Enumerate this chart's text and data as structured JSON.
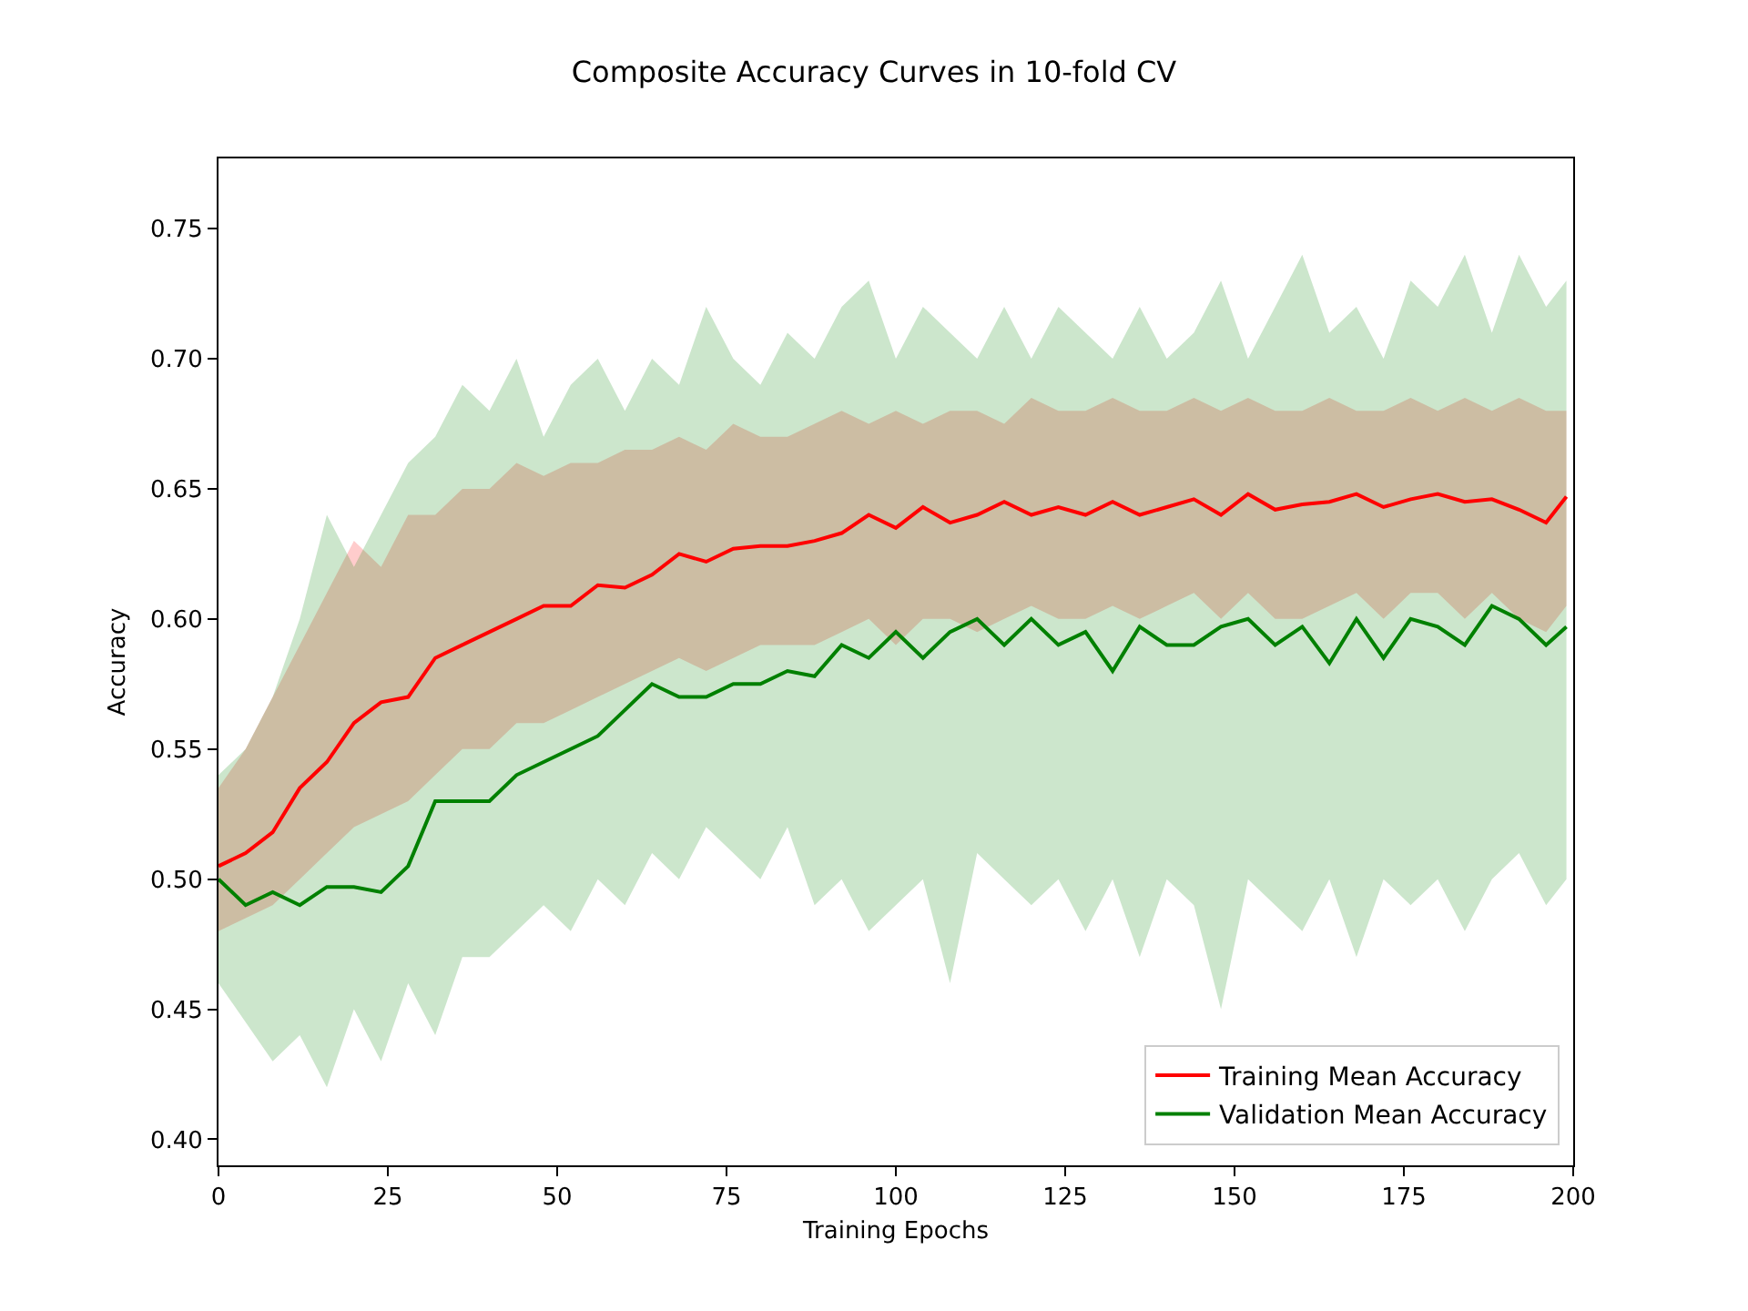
{
  "chart_data": {
    "type": "line",
    "title": "Composite Accuracy Curves in 10-fold CV",
    "xlabel": "Training Epochs",
    "ylabel": "Accuracy",
    "x": [
      0,
      4,
      8,
      12,
      16,
      20,
      24,
      28,
      32,
      36,
      40,
      44,
      48,
      52,
      56,
      60,
      64,
      68,
      72,
      76,
      80,
      84,
      88,
      92,
      96,
      100,
      104,
      108,
      112,
      116,
      120,
      124,
      128,
      132,
      136,
      140,
      144,
      148,
      152,
      156,
      160,
      164,
      168,
      172,
      176,
      180,
      184,
      188,
      192,
      196,
      199
    ],
    "series": [
      {
        "name": "Training Mean Accuracy",
        "color": "#ff0000",
        "values": [
          0.505,
          0.51,
          0.518,
          0.535,
          0.545,
          0.56,
          0.568,
          0.57,
          0.585,
          0.59,
          0.595,
          0.6,
          0.605,
          0.605,
          0.613,
          0.612,
          0.617,
          0.625,
          0.622,
          0.627,
          0.628,
          0.628,
          0.63,
          0.633,
          0.64,
          0.635,
          0.643,
          0.637,
          0.64,
          0.645,
          0.64,
          0.643,
          0.64,
          0.645,
          0.64,
          0.643,
          0.646,
          0.64,
          0.648,
          0.642,
          0.644,
          0.645,
          0.648,
          0.643,
          0.646,
          0.648,
          0.645,
          0.646,
          0.642,
          0.637,
          0.647
        ],
        "lower": [
          0.48,
          0.485,
          0.49,
          0.5,
          0.51,
          0.52,
          0.525,
          0.53,
          0.54,
          0.55,
          0.55,
          0.56,
          0.56,
          0.565,
          0.57,
          0.575,
          0.58,
          0.585,
          0.58,
          0.585,
          0.59,
          0.59,
          0.59,
          0.595,
          0.6,
          0.59,
          0.6,
          0.6,
          0.595,
          0.6,
          0.605,
          0.6,
          0.6,
          0.605,
          0.6,
          0.605,
          0.61,
          0.6,
          0.61,
          0.6,
          0.6,
          0.605,
          0.61,
          0.6,
          0.61,
          0.61,
          0.6,
          0.61,
          0.6,
          0.595,
          0.605
        ],
        "upper": [
          0.535,
          0.55,
          0.57,
          0.59,
          0.61,
          0.63,
          0.62,
          0.64,
          0.64,
          0.65,
          0.65,
          0.66,
          0.655,
          0.66,
          0.66,
          0.665,
          0.665,
          0.67,
          0.665,
          0.675,
          0.67,
          0.67,
          0.675,
          0.68,
          0.675,
          0.68,
          0.675,
          0.68,
          0.68,
          0.675,
          0.685,
          0.68,
          0.68,
          0.685,
          0.68,
          0.68,
          0.685,
          0.68,
          0.685,
          0.68,
          0.68,
          0.685,
          0.68,
          0.68,
          0.685,
          0.68,
          0.685,
          0.68,
          0.685,
          0.68,
          0.68
        ]
      },
      {
        "name": "Validation Mean Accuracy",
        "color": "#008000",
        "values": [
          0.5,
          0.49,
          0.495,
          0.49,
          0.497,
          0.497,
          0.495,
          0.505,
          0.53,
          0.53,
          0.53,
          0.54,
          0.545,
          0.55,
          0.555,
          0.565,
          0.575,
          0.57,
          0.57,
          0.575,
          0.575,
          0.58,
          0.578,
          0.59,
          0.585,
          0.595,
          0.585,
          0.595,
          0.6,
          0.59,
          0.6,
          0.59,
          0.595,
          0.58,
          0.597,
          0.59,
          0.59,
          0.597,
          0.6,
          0.59,
          0.597,
          0.583,
          0.6,
          0.585,
          0.6,
          0.597,
          0.59,
          0.605,
          0.6,
          0.59,
          0.597
        ],
        "lower": [
          0.46,
          0.445,
          0.43,
          0.44,
          0.42,
          0.45,
          0.43,
          0.46,
          0.44,
          0.47,
          0.47,
          0.48,
          0.49,
          0.48,
          0.5,
          0.49,
          0.51,
          0.5,
          0.52,
          0.51,
          0.5,
          0.52,
          0.49,
          0.5,
          0.48,
          0.49,
          0.5,
          0.46,
          0.51,
          0.5,
          0.49,
          0.5,
          0.48,
          0.5,
          0.47,
          0.5,
          0.49,
          0.45,
          0.5,
          0.49,
          0.48,
          0.5,
          0.47,
          0.5,
          0.49,
          0.5,
          0.48,
          0.5,
          0.51,
          0.49,
          0.5
        ],
        "upper": [
          0.54,
          0.55,
          0.57,
          0.6,
          0.64,
          0.62,
          0.64,
          0.66,
          0.67,
          0.69,
          0.68,
          0.7,
          0.67,
          0.69,
          0.7,
          0.68,
          0.7,
          0.69,
          0.72,
          0.7,
          0.69,
          0.71,
          0.7,
          0.72,
          0.73,
          0.7,
          0.72,
          0.71,
          0.7,
          0.72,
          0.7,
          0.72,
          0.71,
          0.7,
          0.72,
          0.7,
          0.71,
          0.73,
          0.7,
          0.72,
          0.74,
          0.71,
          0.72,
          0.7,
          0.73,
          0.72,
          0.74,
          0.71,
          0.74,
          0.72,
          0.73
        ]
      }
    ],
    "xlim": [
      0,
      200
    ],
    "xticks": [
      0,
      25,
      50,
      75,
      100,
      125,
      150,
      175,
      200
    ],
    "ylim": [
      0.39,
      0.777
    ],
    "yticks": [
      {
        "value": 0.4,
        "label": "0.40"
      },
      {
        "value": 0.45,
        "label": "0.45"
      },
      {
        "value": 0.5,
        "label": "0.50"
      },
      {
        "value": 0.55,
        "label": "0.55"
      },
      {
        "value": 0.6,
        "label": "0.60"
      },
      {
        "value": 0.65,
        "label": "0.65"
      },
      {
        "value": 0.7,
        "label": "0.70"
      },
      {
        "value": 0.75,
        "label": "0.75"
      }
    ],
    "legend": "bottom right",
    "line_style": "solid",
    "marker": "none"
  }
}
